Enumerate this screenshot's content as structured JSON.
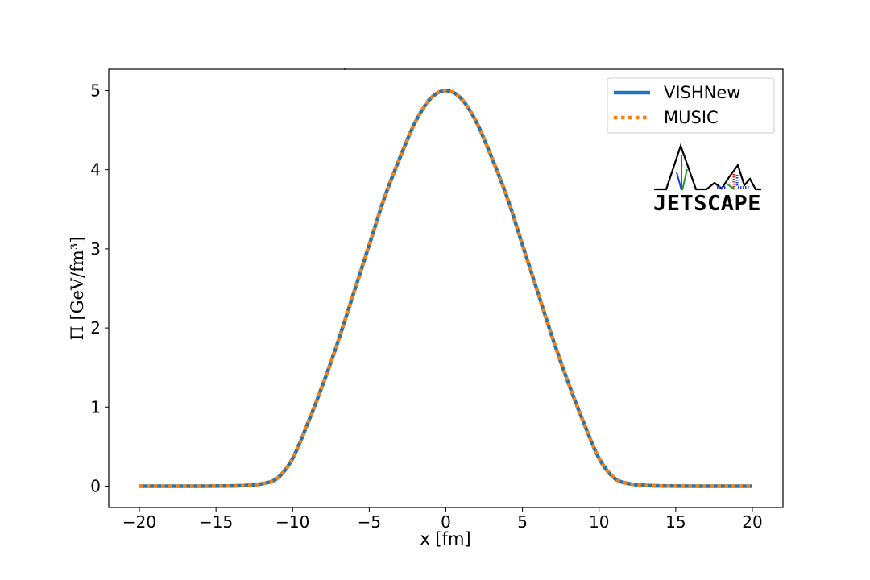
{
  "chart_data": {
    "type": "line",
    "title": "",
    "xlabel": "x [fm]",
    "ylabel": "Π  [GeV/fm³]",
    "xlim": [
      -22,
      22
    ],
    "ylim": [
      -0.27,
      5.27
    ],
    "xticks": [
      -20,
      -15,
      -10,
      -5,
      0,
      5,
      10,
      15,
      20
    ],
    "yticks": [
      0,
      1,
      2,
      3,
      4,
      5
    ],
    "grid": false,
    "legend_position": "top-right",
    "x": [
      -20,
      -18,
      -16,
      -14,
      -13,
      -12,
      -11,
      -10,
      -9,
      -8,
      -7,
      -6,
      -5,
      -4,
      -3,
      -2,
      -1,
      0,
      1,
      2,
      3,
      4,
      5,
      6,
      7,
      8,
      9,
      10,
      11,
      12,
      13,
      14,
      16,
      18,
      20
    ],
    "series": [
      {
        "name": "VISHNew",
        "style": "solid",
        "color": "#1f77b4",
        "values": [
          0,
          0,
          0,
          0.003,
          0.01,
          0.03,
          0.1,
          0.35,
          0.8,
          1.3,
          1.85,
          2.45,
          3.05,
          3.65,
          4.15,
          4.6,
          4.9,
          5.0,
          4.9,
          4.6,
          4.15,
          3.65,
          3.05,
          2.45,
          1.85,
          1.3,
          0.8,
          0.35,
          0.1,
          0.03,
          0.01,
          0.003,
          0,
          0,
          0
        ]
      },
      {
        "name": "MUSIC",
        "style": "dotted",
        "color": "#ff7f0e",
        "values": [
          0,
          0,
          0,
          0.003,
          0.01,
          0.03,
          0.1,
          0.35,
          0.8,
          1.3,
          1.85,
          2.45,
          3.05,
          3.65,
          4.15,
          4.6,
          4.9,
          5.0,
          4.9,
          4.6,
          4.15,
          3.65,
          3.05,
          2.45,
          1.85,
          1.3,
          0.8,
          0.35,
          0.1,
          0.03,
          0.01,
          0.003,
          0,
          0,
          0
        ]
      }
    ]
  },
  "logo": {
    "text": "JETSCAPE"
  }
}
